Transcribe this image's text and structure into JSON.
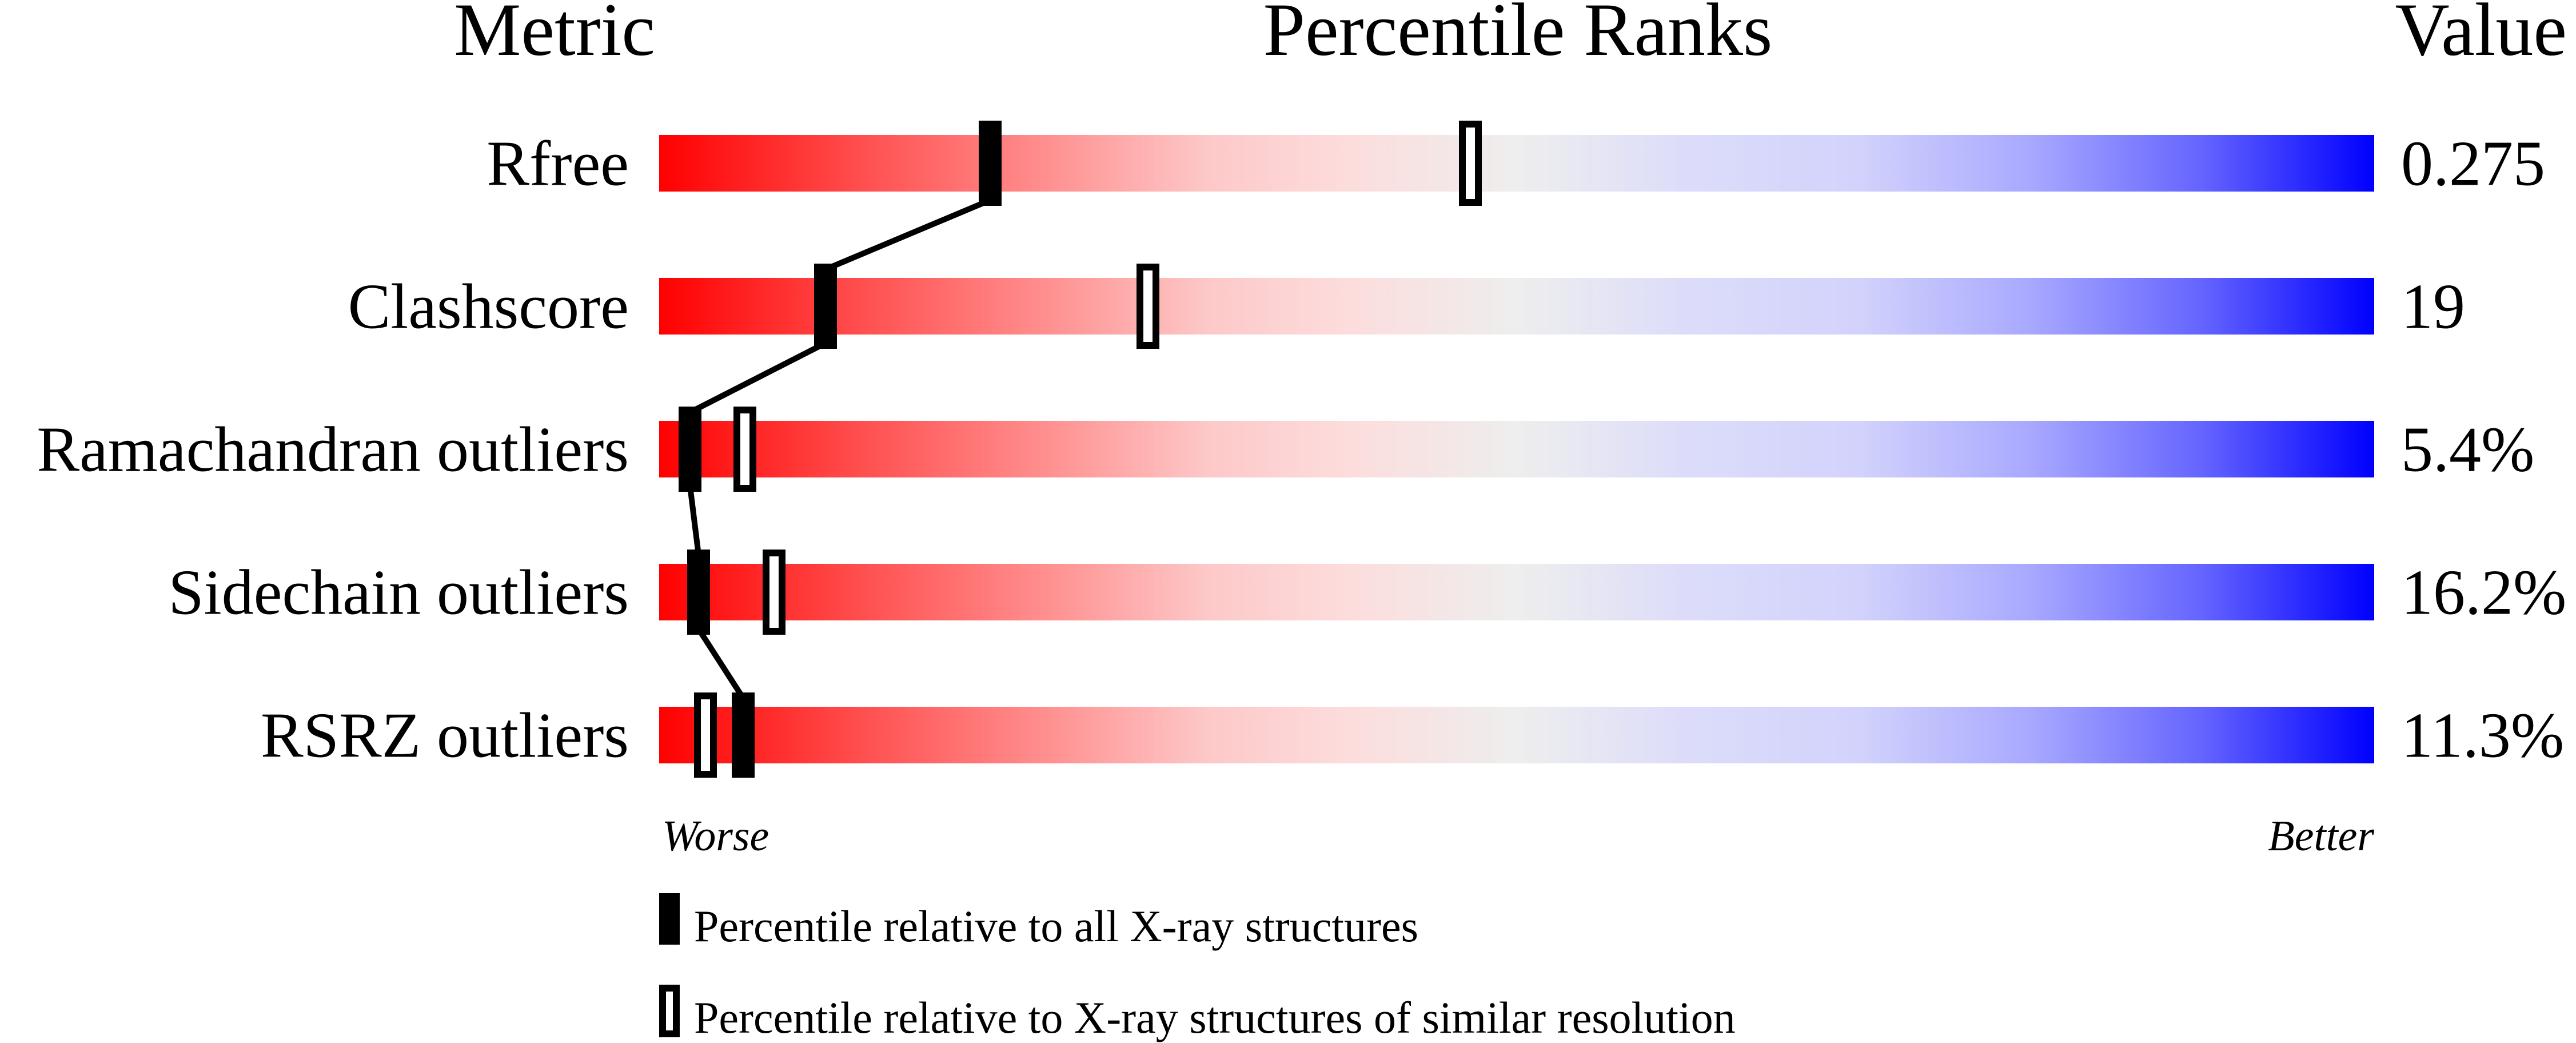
{
  "chart_data": {
    "type": "percentile-slider",
    "headers": {
      "metric": "Metric",
      "ranks": "Percentile Ranks",
      "value": "Value"
    },
    "xlim": [
      0,
      100
    ],
    "axis_labels": {
      "left": "Worse",
      "right": "Better"
    },
    "rows": [
      {
        "metric": "Rfree",
        "value": "0.275",
        "percentile_all": 19.3,
        "percentile_similar": 47.3
      },
      {
        "metric": "Clashscore",
        "value": "19",
        "percentile_all": 9.7,
        "percentile_similar": 28.5
      },
      {
        "metric": "Ramachandran outliers",
        "value": "5.4%",
        "percentile_all": 1.8,
        "percentile_similar": 5.0
      },
      {
        "metric": "Sidechain outliers",
        "value": "16.2%",
        "percentile_all": 2.3,
        "percentile_similar": 6.7
      },
      {
        "metric": "RSRZ outliers",
        "value": "11.3%",
        "percentile_all": 4.9,
        "percentile_similar": 2.7
      }
    ],
    "legend": {
      "all": "Percentile relative to all X-ray structures",
      "similar": "Percentile relative to X-ray structures of similar resolution"
    },
    "colors": {
      "worse": "#ff0000",
      "middle": "#eeeeee",
      "better": "#0000ff",
      "marker": "#000000"
    }
  }
}
